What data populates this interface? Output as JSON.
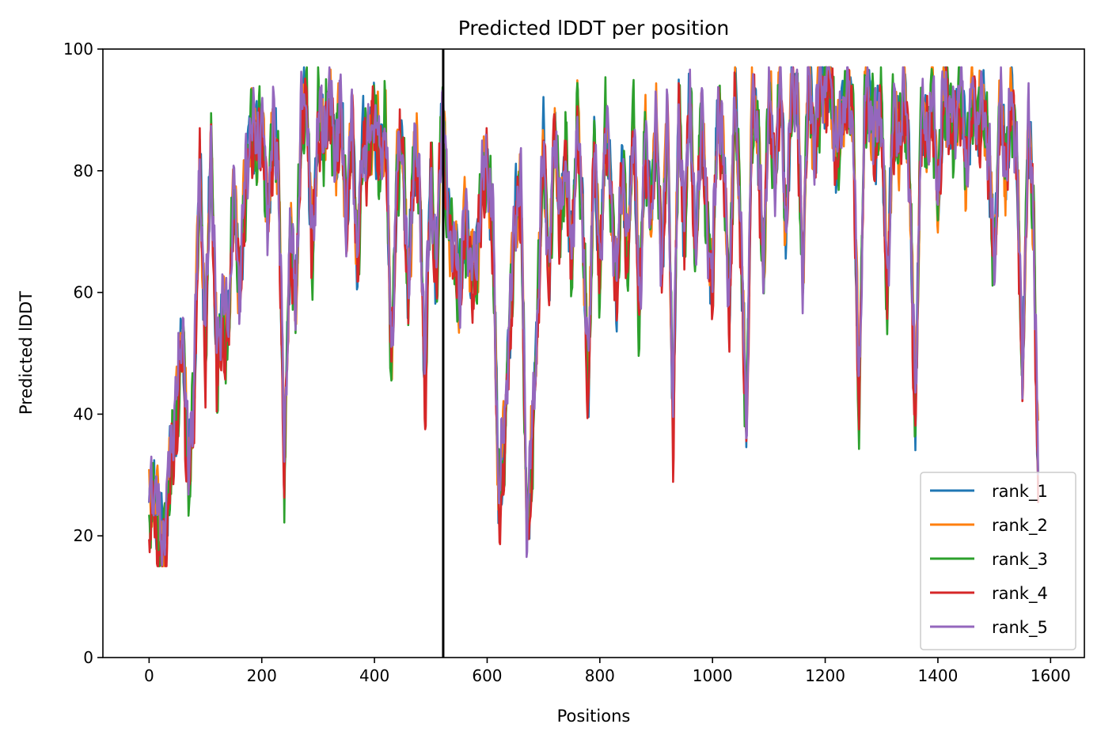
{
  "chart_data": {
    "type": "line",
    "title": "Predicted lDDT per position",
    "xlabel": "Positions",
    "ylabel": "Predicted lDDT",
    "xlim": [
      -82,
      1660
    ],
    "ylim": [
      0,
      100
    ],
    "xticks": [
      0,
      200,
      400,
      600,
      800,
      1000,
      1200,
      1400,
      1600
    ],
    "yticks": [
      0,
      20,
      40,
      60,
      80,
      100
    ],
    "grid": false,
    "legend_position": "lower-right",
    "vline": 522,
    "vline_color": "#000000",
    "series": [
      {
        "name": "rank_1",
        "color": "#1f77b4"
      },
      {
        "name": "rank_2",
        "color": "#ff7f0e"
      },
      {
        "name": "rank_3",
        "color": "#2ca02c"
      },
      {
        "name": "rank_4",
        "color": "#d62728"
      },
      {
        "name": "rank_5",
        "color": "#9467bd"
      }
    ],
    "profile": {
      "x": [
        0,
        10,
        20,
        30,
        40,
        50,
        60,
        70,
        80,
        90,
        100,
        110,
        120,
        130,
        140,
        150,
        160,
        170,
        180,
        190,
        200,
        210,
        220,
        230,
        240,
        250,
        260,
        270,
        280,
        290,
        300,
        310,
        320,
        330,
        340,
        350,
        360,
        370,
        380,
        390,
        400,
        410,
        420,
        430,
        440,
        450,
        460,
        470,
        480,
        490,
        500,
        510,
        520,
        530,
        540,
        550,
        560,
        570,
        580,
        590,
        600,
        610,
        620,
        630,
        640,
        650,
        660,
        670,
        680,
        690,
        700,
        710,
        720,
        730,
        740,
        750,
        760,
        770,
        780,
        790,
        800,
        810,
        820,
        830,
        840,
        850,
        860,
        870,
        880,
        890,
        900,
        910,
        920,
        930,
        940,
        950,
        960,
        970,
        980,
        990,
        1000,
        1010,
        1020,
        1030,
        1040,
        1050,
        1060,
        1070,
        1080,
        1090,
        1100,
        1110,
        1120,
        1130,
        1140,
        1150,
        1160,
        1170,
        1180,
        1190,
        1200,
        1210,
        1220,
        1230,
        1240,
        1250,
        1260,
        1270,
        1280,
        1290,
        1300,
        1310,
        1320,
        1330,
        1340,
        1350,
        1360,
        1370,
        1380,
        1390,
        1400,
        1410,
        1420,
        1430,
        1440,
        1450,
        1460,
        1470,
        1480,
        1490,
        1500,
        1510,
        1520,
        1530,
        1540,
        1550,
        1560,
        1570,
        1578
      ],
      "y": [
        24,
        28,
        18,
        22,
        35,
        42,
        55,
        28,
        45,
        82,
        50,
        85,
        48,
        58,
        52,
        78,
        60,
        76,
        88,
        84,
        89,
        72,
        86,
        80,
        31,
        70,
        58,
        88,
        92,
        65,
        90,
        85,
        93,
        82,
        90,
        72,
        88,
        64,
        86,
        82,
        90,
        80,
        88,
        48,
        80,
        86,
        58,
        84,
        78,
        46,
        80,
        62,
        92,
        72,
        68,
        60,
        72,
        66,
        62,
        78,
        80,
        72,
        27,
        34,
        56,
        72,
        78,
        22,
        34,
        58,
        84,
        62,
        88,
        70,
        84,
        64,
        90,
        70,
        45,
        86,
        62,
        88,
        76,
        60,
        82,
        64,
        90,
        56,
        86,
        72,
        88,
        64,
        90,
        38,
        92,
        70,
        94,
        64,
        90,
        72,
        62,
        92,
        80,
        58,
        94,
        70,
        37,
        90,
        88,
        62,
        94,
        78,
        96,
        70,
        92,
        94,
        62,
        96,
        84,
        92,
        95,
        94,
        82,
        90,
        92,
        88,
        40,
        92,
        90,
        84,
        92,
        58,
        90,
        84,
        92,
        80,
        38,
        90,
        84,
        92,
        76,
        92,
        90,
        86,
        94,
        80,
        92,
        88,
        90,
        84,
        64,
        92,
        80,
        90,
        84,
        44,
        88,
        72,
        30
      ]
    }
  }
}
